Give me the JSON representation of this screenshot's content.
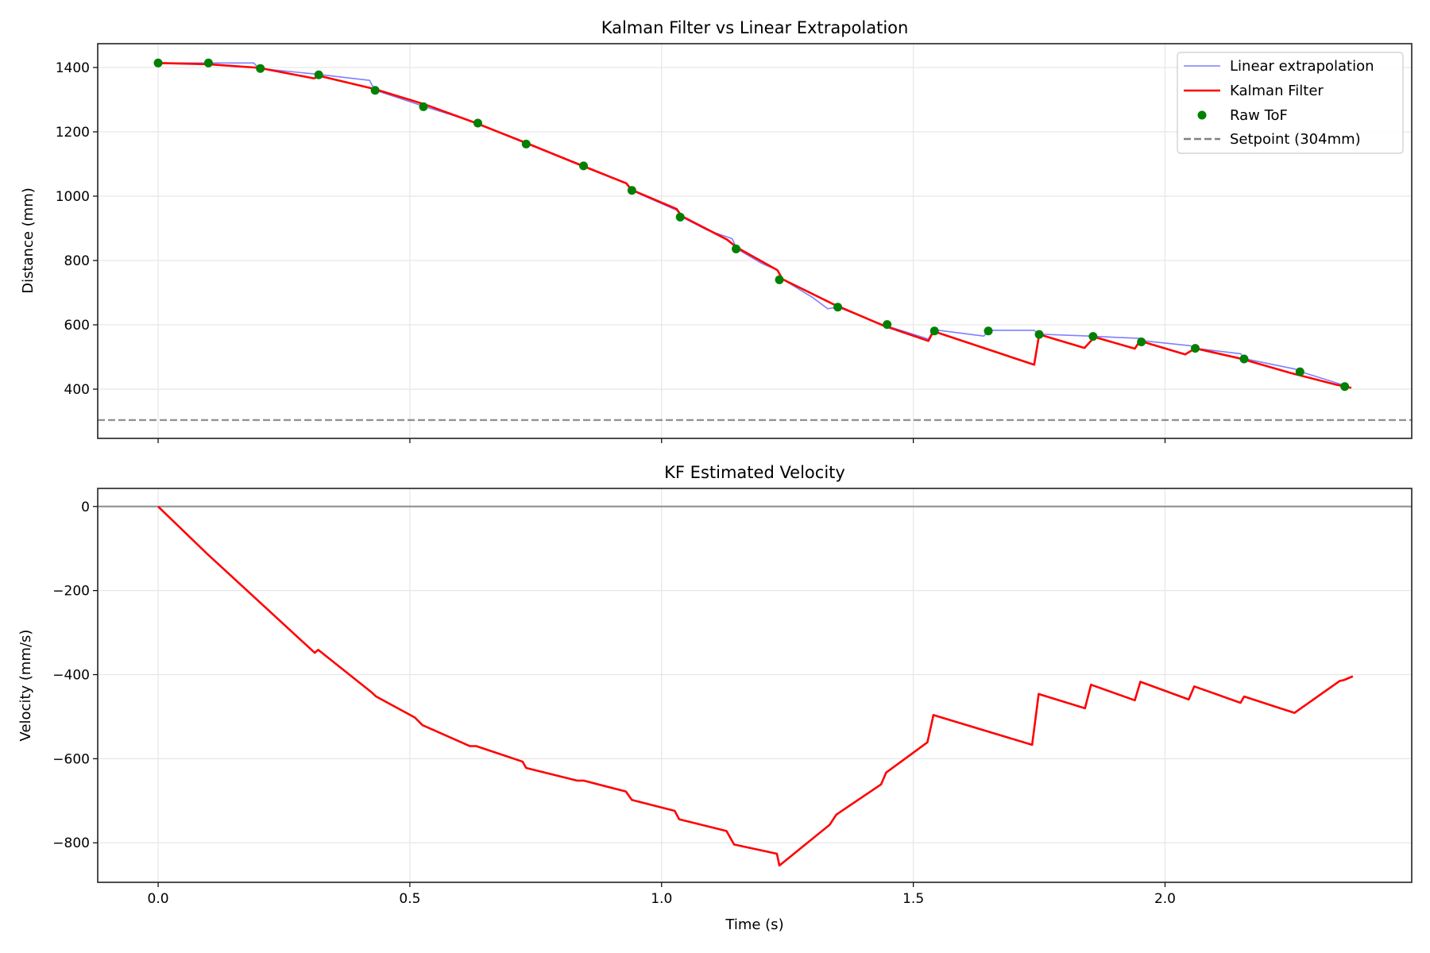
{
  "chart_data": [
    {
      "type": "line",
      "title": "Kalman Filter vs Linear Extrapolation",
      "xlabel": "",
      "ylabel": "Distance (mm)",
      "xlim": [
        -0.12,
        2.49
      ],
      "ylim": [
        247,
        1474
      ],
      "xticks": [
        0.0,
        0.5,
        1.0,
        1.5,
        2.0
      ],
      "yticks": [
        400,
        600,
        800,
        1000,
        1200,
        1400
      ],
      "ytick_labels": [
        "400",
        "600",
        "800",
        "1000",
        "1200",
        "1400"
      ],
      "grid": true,
      "legend_position": "top-right",
      "series": [
        {
          "name": "Linear extrapolation",
          "kind": "line",
          "color": "#7f7fff",
          "points": [
            [
              0,
              1414
            ],
            [
              0.19,
              1414
            ],
            [
              0.2,
              1397
            ],
            [
              0.31,
              1380
            ],
            [
              0.42,
              1360
            ],
            [
              0.43,
              1330
            ],
            [
              0.53,
              1278
            ],
            [
              0.63,
              1230
            ],
            [
              0.73,
              1164
            ],
            [
              0.84,
              1098
            ],
            [
              0.93,
              1040
            ],
            [
              0.94,
              1018
            ],
            [
              1.03,
              956
            ],
            [
              1.04,
              935
            ],
            [
              1.09,
              895
            ],
            [
              1.14,
              868
            ],
            [
              1.15,
              836
            ],
            [
              1.2,
              790
            ],
            [
              1.23,
              770
            ],
            [
              1.24,
              742
            ],
            [
              1.3,
              685
            ],
            [
              1.33,
              650
            ],
            [
              1.35,
              655
            ],
            [
              1.44,
              600
            ],
            [
              1.53,
              556
            ],
            [
              1.54,
              585
            ],
            [
              1.64,
              565
            ],
            [
              1.65,
              583
            ],
            [
              1.74,
              583
            ],
            [
              1.75,
              571
            ],
            [
              1.85,
              565
            ],
            [
              1.86,
              564
            ],
            [
              1.95,
              558
            ],
            [
              1.96,
              550
            ],
            [
              2.05,
              535
            ],
            [
              2.06,
              527
            ],
            [
              2.15,
              510
            ],
            [
              2.16,
              494
            ],
            [
              2.26,
              462
            ],
            [
              2.27,
              454
            ],
            [
              2.36,
              410
            ]
          ]
        },
        {
          "name": "Kalman Filter",
          "kind": "line",
          "color": "#ff0000",
          "points": [
            [
              0,
              1414
            ],
            [
              0.1,
              1410
            ],
            [
              0.2,
              1399
            ],
            [
              0.31,
              1366
            ],
            [
              0.32,
              1374
            ],
            [
              0.43,
              1333
            ],
            [
              0.53,
              1285
            ],
            [
              0.63,
              1228
            ],
            [
              0.73,
              1166
            ],
            [
              0.84,
              1096
            ],
            [
              0.93,
              1040
            ],
            [
              0.94,
              1020
            ],
            [
              1.03,
              960
            ],
            [
              1.04,
              938
            ],
            [
              1.13,
              865
            ],
            [
              1.15,
              840
            ],
            [
              1.23,
              770
            ],
            [
              1.24,
              742
            ],
            [
              1.34,
              665
            ],
            [
              1.44,
              598
            ],
            [
              1.53,
              550
            ],
            [
              1.54,
              580
            ],
            [
              1.74,
              476
            ],
            [
              1.75,
              570
            ],
            [
              1.84,
              528
            ],
            [
              1.86,
              562
            ],
            [
              1.94,
              526
            ],
            [
              1.95,
              550
            ],
            [
              2.04,
              508
            ],
            [
              2.06,
              527
            ],
            [
              2.15,
              495
            ],
            [
              2.25,
              450
            ],
            [
              2.34,
              414
            ],
            [
              2.37,
              404
            ]
          ]
        },
        {
          "name": "Raw ToF",
          "kind": "scatter",
          "color": "#008000",
          "points": [
            [
              0,
              1414
            ],
            [
              0.1,
              1414
            ],
            [
              0.203,
              1397
            ],
            [
              0.319,
              1377
            ],
            [
              0.431,
              1329
            ],
            [
              0.527,
              1278
            ],
            [
              0.635,
              1227
            ],
            [
              0.731,
              1162
            ],
            [
              0.845,
              1094
            ],
            [
              0.941,
              1018
            ],
            [
              1.037,
              935
            ],
            [
              1.148,
              836
            ],
            [
              1.234,
              740
            ],
            [
              1.35,
              655
            ],
            [
              1.448,
              601
            ],
            [
              1.542,
              581
            ],
            [
              1.649,
              581
            ],
            [
              1.75,
              570
            ],
            [
              1.857,
              564
            ],
            [
              1.953,
              547
            ],
            [
              2.06,
              527
            ],
            [
              2.157,
              494
            ],
            [
              2.268,
              454
            ],
            [
              2.357,
              408
            ]
          ]
        },
        {
          "name": "Setpoint (304mm)",
          "kind": "hline",
          "color": "#808080",
          "y": 304
        }
      ]
    },
    {
      "type": "line",
      "title": "KF Estimated Velocity",
      "xlabel": "Time (s)",
      "ylabel": "Velocity (mm/s)",
      "xlim": [
        -0.12,
        2.49
      ],
      "ylim": [
        -894,
        43
      ],
      "xticks": [
        0.0,
        0.5,
        1.0,
        1.5,
        2.0
      ],
      "xtick_labels": [
        "0.0",
        "0.5",
        "1.0",
        "1.5",
        "2.0"
      ],
      "yticks": [
        -800,
        -600,
        -400,
        -200,
        0
      ],
      "ytick_labels": [
        "−800",
        "−600",
        "−400",
        "−200",
        "0"
      ],
      "grid": true,
      "reference_line": {
        "y": 0,
        "color": "#808080"
      },
      "series": [
        {
          "kind": "line",
          "color": "#ff0000",
          "points": [
            [
              0,
              0
            ],
            [
              0.096,
              -111
            ],
            [
              0.311,
              -348
            ],
            [
              0.318,
              -341
            ],
            [
              0.425,
              -443
            ],
            [
              0.433,
              -452
            ],
            [
              0.51,
              -502
            ],
            [
              0.525,
              -520
            ],
            [
              0.619,
              -570
            ],
            [
              0.632,
              -570
            ],
            [
              0.724,
              -607
            ],
            [
              0.731,
              -622
            ],
            [
              0.832,
              -652
            ],
            [
              0.845,
              -652
            ],
            [
              0.929,
              -678
            ],
            [
              0.941,
              -698
            ],
            [
              1.026,
              -724
            ],
            [
              1.035,
              -744
            ],
            [
              1.129,
              -772
            ],
            [
              1.144,
              -804
            ],
            [
              1.229,
              -826
            ],
            [
              1.234,
              -854
            ],
            [
              1.334,
              -757
            ],
            [
              1.347,
              -733
            ],
            [
              1.436,
              -661
            ],
            [
              1.446,
              -633
            ],
            [
              1.528,
              -561
            ],
            [
              1.54,
              -496
            ],
            [
              1.736,
              -567
            ],
            [
              1.749,
              -446
            ],
            [
              1.841,
              -480
            ],
            [
              1.853,
              -424
            ],
            [
              1.94,
              -461
            ],
            [
              1.951,
              -417
            ],
            [
              2.047,
              -459
            ],
            [
              2.058,
              -428
            ],
            [
              2.15,
              -467
            ],
            [
              2.157,
              -452
            ],
            [
              2.257,
              -491
            ],
            [
              2.347,
              -415
            ],
            [
              2.355,
              -413
            ],
            [
              2.373,
              -404
            ]
          ]
        }
      ]
    }
  ]
}
